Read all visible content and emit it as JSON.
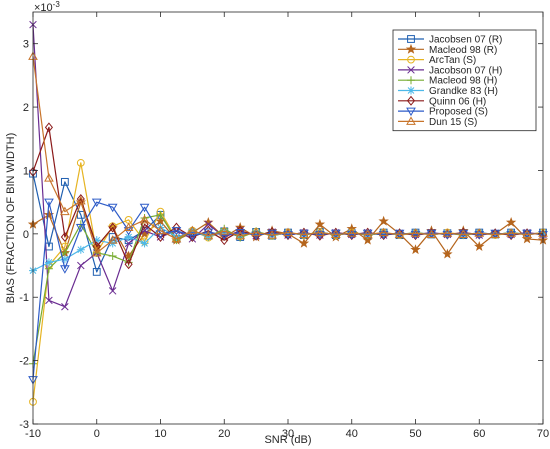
{
  "chart_data": {
    "type": "line",
    "title": "",
    "xlabel": "SNR (dB)",
    "ylabel": "BIAS (FRACTION OF BIN WIDTH)",
    "y_exponent_label": "×10",
    "y_exponent_power": "-3",
    "xlim": [
      -10,
      70
    ],
    "ylim": [
      -3,
      3.5
    ],
    "xticks": [
      -10,
      0,
      10,
      20,
      30,
      40,
      50,
      60,
      70
    ],
    "yticks": [
      -3,
      -2,
      -1,
      0,
      1,
      2,
      3
    ],
    "grid": false,
    "legend_position": "top-right",
    "x": [
      -10,
      -7.5,
      -5,
      -2.5,
      0,
      2.5,
      5,
      7.5,
      10,
      12.5,
      15,
      17.5,
      20,
      22.5,
      25,
      27.5,
      30,
      32.5,
      35,
      37.5,
      40,
      42.5,
      45,
      47.5,
      50,
      52.5,
      55,
      57.5,
      60,
      62.5,
      65,
      67.5,
      70
    ],
    "series": [
      {
        "name": "Jacobsen 07 (R)",
        "color": "#1f5fb0",
        "marker": "square",
        "values": [
          0.95,
          -0.2,
          0.82,
          0.3,
          -0.6,
          -0.05,
          -0.1,
          0.05,
          0.3,
          -0.08,
          0.02,
          -0.03,
          0.04,
          -0.05,
          0.03,
          -0.03,
          0.02,
          -0.02,
          0.03,
          -0.02,
          0.01,
          -0.02,
          0.02,
          -0.02,
          0.02,
          -0.01,
          0.01,
          -0.02,
          0.02,
          -0.01,
          0.02,
          -0.01,
          0.02
        ]
      },
      {
        "name": "Macleod 98 (R)",
        "color": "#b5651d",
        "marker": "star",
        "values": [
          0.15,
          0.3,
          -0.3,
          0.5,
          -0.2,
          0.1,
          -0.35,
          0.0,
          0.2,
          -0.1,
          0.02,
          0.18,
          -0.05,
          0.1,
          -0.05,
          0.05,
          0.0,
          -0.15,
          0.15,
          -0.05,
          0.08,
          -0.1,
          0.2,
          0.0,
          -0.25,
          0.05,
          -0.32,
          0.05,
          -0.2,
          0.0,
          0.18,
          -0.08,
          -0.1
        ]
      },
      {
        "name": "ArcTan (S)",
        "color": "#e6b422",
        "marker": "circle",
        "values": [
          -2.65,
          -0.5,
          -0.2,
          1.12,
          -0.3,
          0.12,
          0.22,
          -0.12,
          0.35,
          -0.08,
          0.05,
          -0.06,
          0.04,
          -0.04,
          0.03,
          -0.03,
          0.02,
          -0.02,
          0.03,
          -0.02,
          0.02,
          -0.01,
          0.02,
          -0.02,
          0.01,
          -0.01,
          0.02,
          -0.01,
          0.01,
          -0.02,
          0.01,
          -0.01,
          0.02
        ]
      },
      {
        "name": "Jacobson 07 (H)",
        "color": "#6a2c91",
        "marker": "x",
        "values": [
          3.3,
          -1.05,
          -1.15,
          -0.5,
          -0.3,
          -0.9,
          -0.15,
          0.05,
          -0.05,
          0.05,
          -0.08,
          0.15,
          -0.05,
          0.05,
          -0.03,
          0.03,
          -0.02,
          0.02,
          -0.02,
          0.02,
          -0.01,
          0.02,
          -0.02,
          0.01,
          -0.01,
          0.02,
          -0.01,
          0.01,
          -0.02,
          0.01,
          -0.01,
          0.02,
          -0.01
        ]
      },
      {
        "name": "Macleod 98 (H)",
        "color": "#77ac30",
        "marker": "plus",
        "values": [
          -2.05,
          -0.55,
          -0.3,
          0.15,
          -0.3,
          -0.35,
          -0.45,
          0.25,
          0.3,
          -0.1,
          0.05,
          -0.05,
          0.08,
          -0.06,
          0.04,
          -0.03,
          0.02,
          -0.02,
          0.03,
          -0.02,
          0.02,
          -0.02,
          0.01,
          -0.01,
          0.02,
          -0.01,
          0.01,
          -0.02,
          0.01,
          -0.01,
          0.02,
          -0.01,
          0.01
        ]
      },
      {
        "name": "Grandke 83 (H)",
        "color": "#4db8e8",
        "marker": "asterisk",
        "values": [
          -0.58,
          -0.45,
          -0.4,
          -0.25,
          -0.1,
          -0.15,
          -0.05,
          -0.15,
          0.1,
          -0.05,
          0.03,
          -0.04,
          0.03,
          -0.02,
          0.02,
          -0.02,
          0.01,
          -0.01,
          0.02,
          -0.01,
          0.01,
          -0.01,
          0.01,
          -0.01,
          0.01,
          -0.01,
          0.01,
          -0.01,
          0.01,
          -0.01,
          0.01,
          -0.01,
          0.01
        ]
      },
      {
        "name": "Quinn 06 (H)",
        "color": "#8b1a1a",
        "marker": "diamond",
        "values": [
          0.98,
          1.68,
          -0.05,
          0.55,
          -0.2,
          0.1,
          -0.48,
          0.15,
          -0.05,
          0.1,
          -0.05,
          0.05,
          -0.1,
          0.05,
          -0.03,
          0.03,
          -0.02,
          0.02,
          -0.03,
          0.02,
          -0.02,
          0.02,
          -0.02,
          0.01,
          -0.02,
          0.01,
          -0.01,
          0.02,
          -0.01,
          0.01,
          -0.02,
          0.01,
          -0.01
        ]
      },
      {
        "name": "Proposed (S)",
        "color": "#2e5cc8",
        "marker": "triangle-down",
        "values": [
          -2.3,
          0.5,
          -0.55,
          0.1,
          0.5,
          0.42,
          0.05,
          0.42,
          0.0,
          0.05,
          -0.03,
          0.03,
          -0.02,
          0.02,
          -0.02,
          0.01,
          -0.01,
          0.01,
          -0.01,
          0.01,
          -0.01,
          0.01,
          -0.01,
          0.01,
          -0.01,
          0.01,
          -0.01,
          0.01,
          -0.01,
          0.01,
          -0.01,
          0.01,
          -0.01
        ]
      },
      {
        "name": "Dun 15 (S)",
        "color": "#c8742a",
        "marker": "triangle-up",
        "values": [
          2.8,
          0.88,
          0.35,
          0.52,
          -0.3,
          -0.1,
          0.1,
          0.22,
          0.05,
          -0.08,
          0.05,
          -0.03,
          0.04,
          -0.03,
          0.02,
          -0.02,
          0.02,
          -0.01,
          0.02,
          -0.01,
          0.01,
          -0.01,
          0.02,
          -0.01,
          0.01,
          -0.01,
          0.01,
          -0.01,
          0.01,
          -0.01,
          0.01,
          -0.01,
          0.01
        ]
      }
    ]
  }
}
